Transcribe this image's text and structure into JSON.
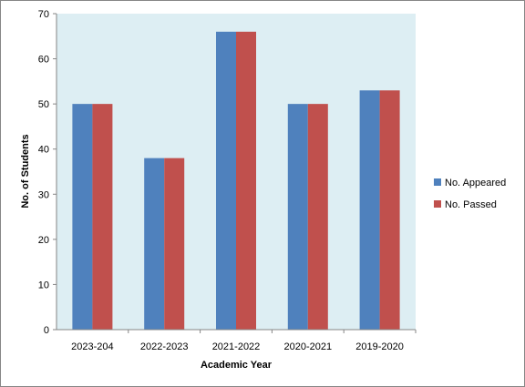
{
  "chart_data": {
    "type": "bar",
    "categories": [
      "2023-204",
      "2022-2023",
      "2021-2022",
      "2020-2021",
      "2019-2020"
    ],
    "series": [
      {
        "name": "No. Appeared",
        "values": [
          50,
          38,
          66,
          50,
          53
        ],
        "color": "#4f81bd"
      },
      {
        "name": "No. Passed",
        "values": [
          50,
          38,
          66,
          50,
          53
        ],
        "color": "#c0504d"
      }
    ],
    "xlabel": "Academic Year",
    "ylabel": "No. of Students",
    "ylim": [
      0,
      70
    ],
    "yticks": [
      "0",
      "10",
      "20",
      "30",
      "40",
      "50",
      "60",
      "70"
    ],
    "grid": false,
    "legend_position": "right",
    "plot_background": "#ddeef3"
  }
}
